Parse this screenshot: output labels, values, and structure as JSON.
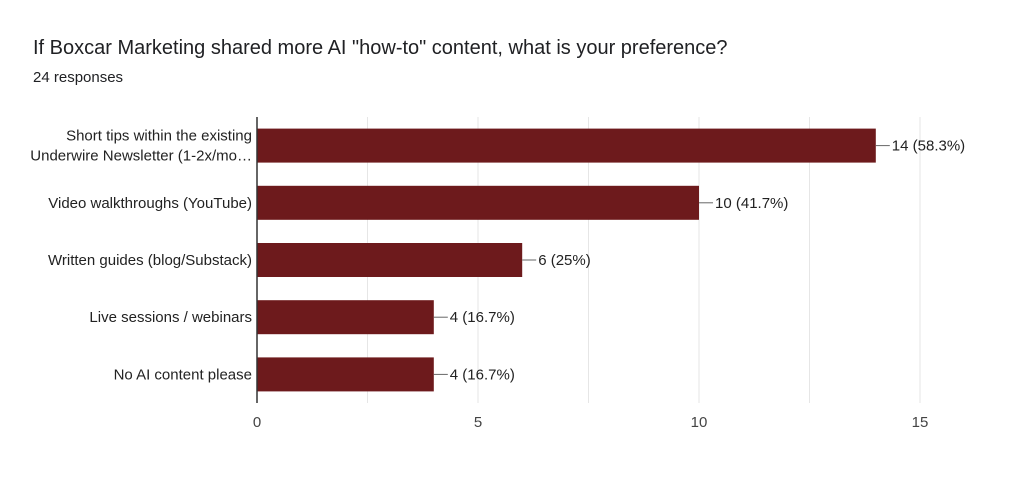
{
  "header": {
    "question": "If Boxcar Marketing shared more AI \"how-to\" content, what is your preference?",
    "responses": "24 responses"
  },
  "colors": {
    "bar": "#6d1a1c",
    "grid": "#e6e6e6",
    "axis": "#333333",
    "leader": "#666666"
  },
  "chart_data": {
    "type": "bar",
    "orientation": "horizontal",
    "categories": [
      [
        "Short tips within the existing",
        "Underwire Newsletter (1-2x/mo…"
      ],
      [
        "Video walkthroughs (YouTube)"
      ],
      [
        "Written guides (blog/Substack)"
      ],
      [
        "Live sessions / webinars"
      ],
      [
        "No AI content please"
      ]
    ],
    "values": [
      14,
      10,
      6,
      4,
      4
    ],
    "data_labels": [
      "14 (58.3%)",
      "10 (41.7%)",
      "6 (25%)",
      "4 (16.7%)",
      "4 (16.7%)"
    ],
    "xlim": [
      0,
      15
    ],
    "xticks": [
      0,
      5,
      10,
      15
    ],
    "grid": true
  }
}
